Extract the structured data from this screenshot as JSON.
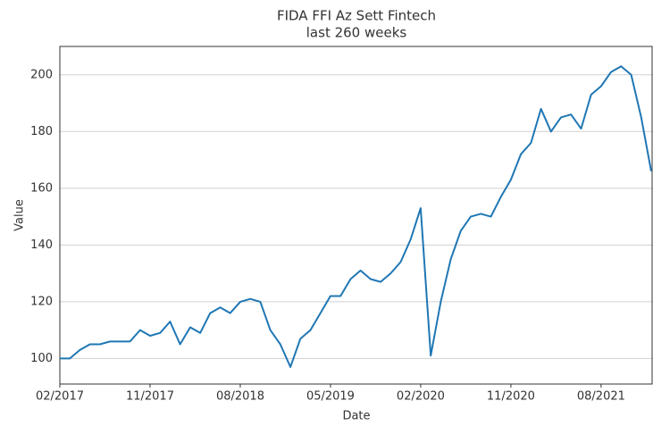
{
  "chart_data": {
    "type": "line",
    "title": "FIDA FFI Az Sett Fintech",
    "subtitle": "last 260 weeks",
    "x_label": "Date",
    "y_label": "Value",
    "x": [
      "02/2017",
      "03/2017",
      "04/2017",
      "05/2017",
      "06/2017",
      "07/2017",
      "08/2017",
      "09/2017",
      "10/2017",
      "11/2017",
      "12/2017",
      "01/2018",
      "02/2018",
      "03/2018",
      "04/2018",
      "05/2018",
      "06/2018",
      "07/2018",
      "08/2018",
      "09/2018",
      "10/2018",
      "11/2018",
      "12/2018",
      "01/2019",
      "02/2019",
      "03/2019",
      "04/2019",
      "05/2019",
      "06/2019",
      "07/2019",
      "08/2019",
      "09/2019",
      "10/2019",
      "11/2019",
      "12/2019",
      "01/2020",
      "02/2020",
      "03/2020",
      "04/2020",
      "05/2020",
      "06/2020",
      "07/2020",
      "08/2020",
      "09/2020",
      "10/2020",
      "11/2020",
      "12/2020",
      "01/2021",
      "02/2021",
      "03/2021",
      "04/2021",
      "05/2021",
      "06/2021",
      "07/2021",
      "08/2021",
      "09/2021",
      "10/2021",
      "11/2021",
      "12/2021",
      "01/2022"
    ],
    "series": [
      {
        "name": "Value",
        "color": "#1f77b4",
        "values": [
          100,
          100,
          103,
          105,
          105,
          106,
          106,
          106,
          110,
          108,
          109,
          113,
          105,
          111,
          109,
          116,
          118,
          116,
          120,
          121,
          120,
          110,
          105,
          97,
          107,
          110,
          116,
          122,
          122,
          128,
          131,
          128,
          127,
          130,
          134,
          142,
          153,
          101,
          120,
          135,
          145,
          150,
          151,
          150,
          157,
          163,
          172,
          176,
          188,
          180,
          185,
          186,
          181,
          193,
          196,
          201,
          203,
          200,
          185,
          166
        ]
      }
    ],
    "xticks": [
      "02/2017",
      "11/2017",
      "08/2018",
      "05/2019",
      "02/2020",
      "11/2020",
      "08/2021"
    ],
    "ylim": [
      91,
      210
    ],
    "yticks": [
      100,
      120,
      140,
      160,
      180,
      200
    ],
    "grid": true
  }
}
